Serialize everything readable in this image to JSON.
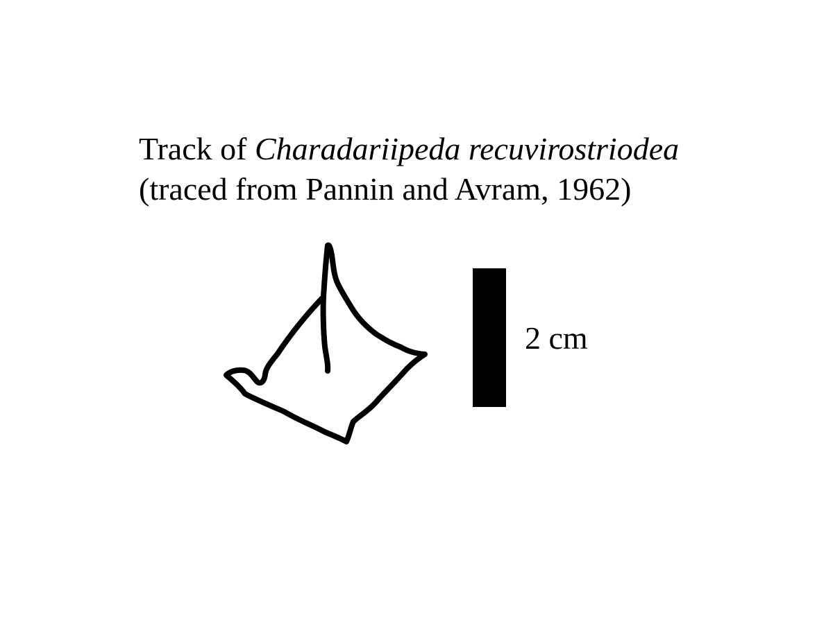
{
  "caption": {
    "line1_prefix": "Track of ",
    "line1_taxon": "Charadariipeda recuvirostriodea",
    "line2": "(traced from Pannin and Avram, 1962)"
  },
  "scale": {
    "label": "2 cm",
    "color": "#000000"
  },
  "track": {
    "stroke_color": "#000000"
  }
}
